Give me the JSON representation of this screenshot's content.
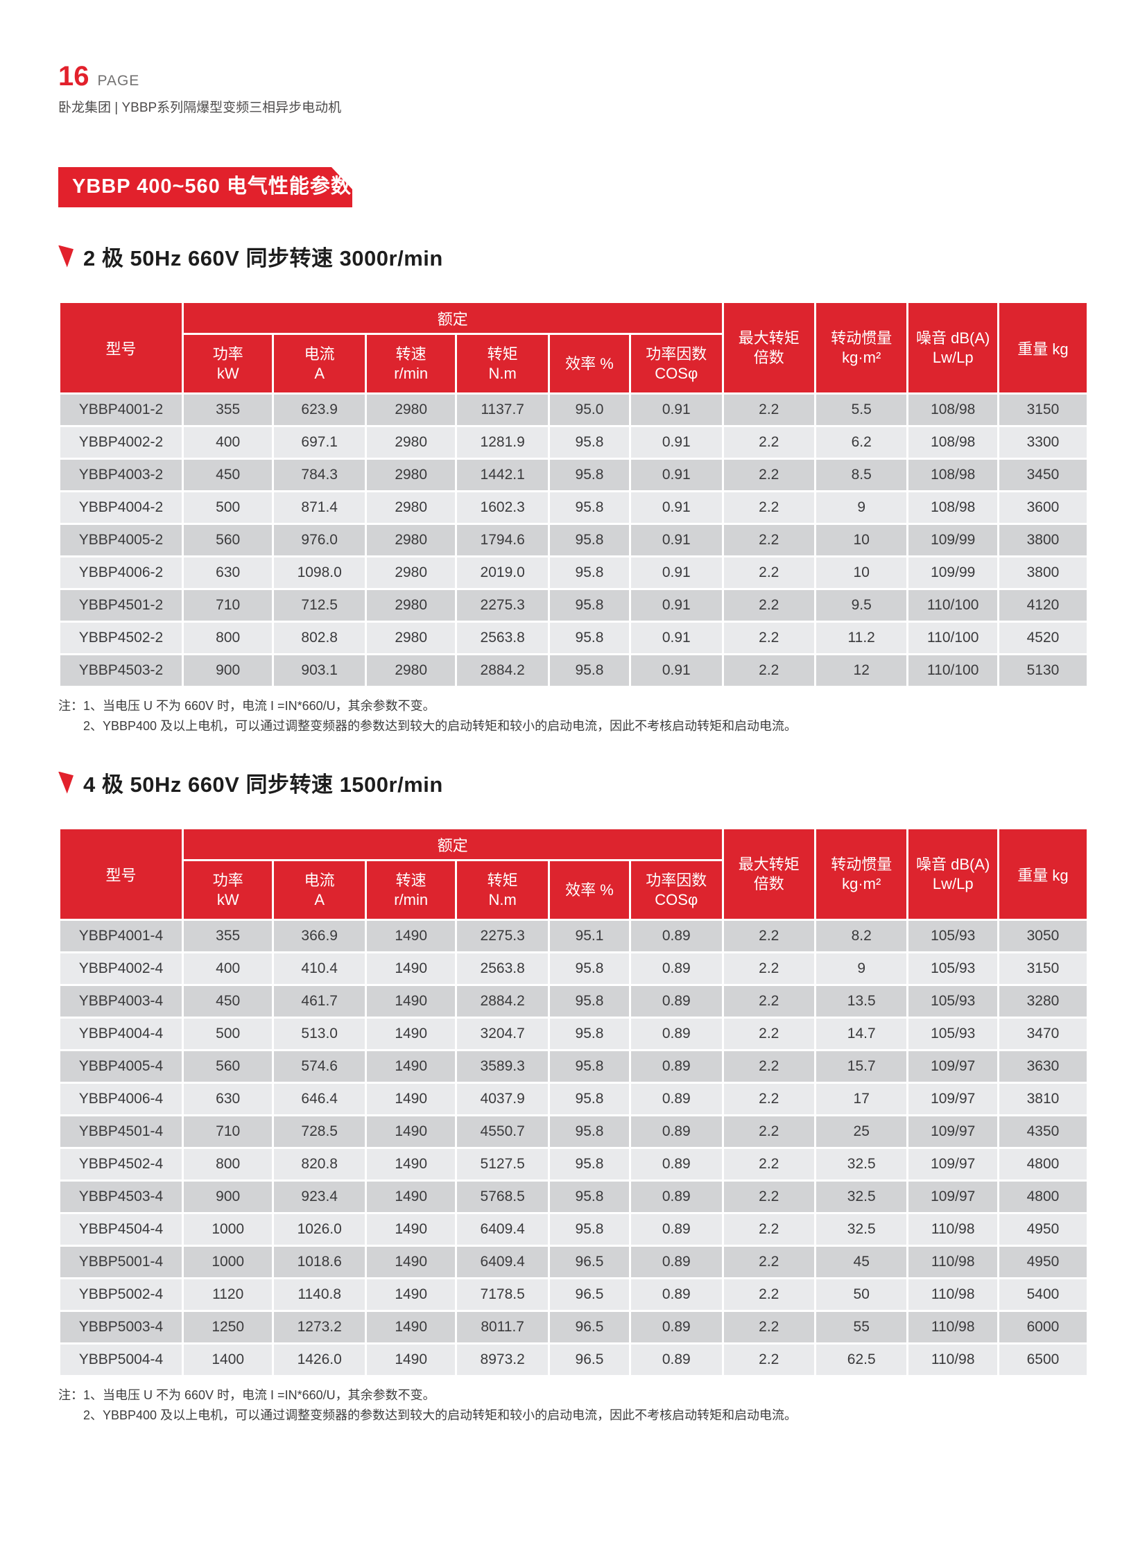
{
  "page": {
    "page_number": "16",
    "page_label": "PAGE",
    "subtitle": "卧龙集团 | YBBP系列隔爆型变频三相异步电动机",
    "banner_title": "YBBP 400~560 电气性能参数"
  },
  "colors": {
    "accent_red": "#e2212c",
    "row_dark": "#d2d3d5",
    "row_light": "#e9eaec"
  },
  "table_headers": {
    "model": "型号",
    "rated_group": "额定",
    "sub": [
      {
        "l1": "功率",
        "l2": "kW"
      },
      {
        "l1": "电流",
        "l2": "A"
      },
      {
        "l1": "转速",
        "l2": "r/min"
      },
      {
        "l1": "转矩",
        "l2": "N.m"
      },
      {
        "l1": "效率 %",
        "l2": ""
      },
      {
        "l1": "功率因数",
        "l2": "COSφ"
      }
    ],
    "max_torque": {
      "l1": "最大转矩",
      "l2": "倍数"
    },
    "inertia": {
      "l1": "转动惯量",
      "l2": "kg·m²"
    },
    "noise": {
      "l1": "噪音 dB(A)",
      "l2": "Lw/Lp"
    },
    "weight": "重量 kg"
  },
  "note_label": "注：",
  "sections": [
    {
      "heading": "2 极 50Hz 660V 同步转速 3000r/min",
      "rows": [
        [
          "YBBP4001-2",
          "355",
          "623.9",
          "2980",
          "1137.7",
          "95.0",
          "0.91",
          "2.2",
          "5.5",
          "108/98",
          "3150"
        ],
        [
          "YBBP4002-2",
          "400",
          "697.1",
          "2980",
          "1281.9",
          "95.8",
          "0.91",
          "2.2",
          "6.2",
          "108/98",
          "3300"
        ],
        [
          "YBBP4003-2",
          "450",
          "784.3",
          "2980",
          "1442.1",
          "95.8",
          "0.91",
          "2.2",
          "8.5",
          "108/98",
          "3450"
        ],
        [
          "YBBP4004-2",
          "500",
          "871.4",
          "2980",
          "1602.3",
          "95.8",
          "0.91",
          "2.2",
          "9",
          "108/98",
          "3600"
        ],
        [
          "YBBP4005-2",
          "560",
          "976.0",
          "2980",
          "1794.6",
          "95.8",
          "0.91",
          "2.2",
          "10",
          "109/99",
          "3800"
        ],
        [
          "YBBP4006-2",
          "630",
          "1098.0",
          "2980",
          "2019.0",
          "95.8",
          "0.91",
          "2.2",
          "10",
          "109/99",
          "3800"
        ],
        [
          "YBBP4501-2",
          "710",
          "712.5",
          "2980",
          "2275.3",
          "95.8",
          "0.91",
          "2.2",
          "9.5",
          "110/100",
          "4120"
        ],
        [
          "YBBP4502-2",
          "800",
          "802.8",
          "2980",
          "2563.8",
          "95.8",
          "0.91",
          "2.2",
          "11.2",
          "110/100",
          "4520"
        ],
        [
          "YBBP4503-2",
          "900",
          "903.1",
          "2980",
          "2884.2",
          "95.8",
          "0.91",
          "2.2",
          "12",
          "110/100",
          "5130"
        ]
      ],
      "notes": [
        "1、当电压 U 不为 660V 时，电流 I =IN*660/U，其余参数不变。",
        "2、YBBP400 及以上电机，可以通过调整变频器的参数达到较大的启动转矩和较小的启动电流，因此不考核启动转矩和启动电流。"
      ]
    },
    {
      "heading": "4 极 50Hz 660V 同步转速 1500r/min",
      "rows": [
        [
          "YBBP4001-4",
          "355",
          "366.9",
          "1490",
          "2275.3",
          "95.1",
          "0.89",
          "2.2",
          "8.2",
          "105/93",
          "3050"
        ],
        [
          "YBBP4002-4",
          "400",
          "410.4",
          "1490",
          "2563.8",
          "95.8",
          "0.89",
          "2.2",
          "9",
          "105/93",
          "3150"
        ],
        [
          "YBBP4003-4",
          "450",
          "461.7",
          "1490",
          "2884.2",
          "95.8",
          "0.89",
          "2.2",
          "13.5",
          "105/93",
          "3280"
        ],
        [
          "YBBP4004-4",
          "500",
          "513.0",
          "1490",
          "3204.7",
          "95.8",
          "0.89",
          "2.2",
          "14.7",
          "105/93",
          "3470"
        ],
        [
          "YBBP4005-4",
          "560",
          "574.6",
          "1490",
          "3589.3",
          "95.8",
          "0.89",
          "2.2",
          "15.7",
          "109/97",
          "3630"
        ],
        [
          "YBBP4006-4",
          "630",
          "646.4",
          "1490",
          "4037.9",
          "95.8",
          "0.89",
          "2.2",
          "17",
          "109/97",
          "3810"
        ],
        [
          "YBBP4501-4",
          "710",
          "728.5",
          "1490",
          "4550.7",
          "95.8",
          "0.89",
          "2.2",
          "25",
          "109/97",
          "4350"
        ],
        [
          "YBBP4502-4",
          "800",
          "820.8",
          "1490",
          "5127.5",
          "95.8",
          "0.89",
          "2.2",
          "32.5",
          "109/97",
          "4800"
        ],
        [
          "YBBP4503-4",
          "900",
          "923.4",
          "1490",
          "5768.5",
          "95.8",
          "0.89",
          "2.2",
          "32.5",
          "109/97",
          "4800"
        ],
        [
          "YBBP4504-4",
          "1000",
          "1026.0",
          "1490",
          "6409.4",
          "95.8",
          "0.89",
          "2.2",
          "32.5",
          "110/98",
          "4950"
        ],
        [
          "YBBP5001-4",
          "1000",
          "1018.6",
          "1490",
          "6409.4",
          "96.5",
          "0.89",
          "2.2",
          "45",
          "110/98",
          "4950"
        ],
        [
          "YBBP5002-4",
          "1120",
          "1140.8",
          "1490",
          "7178.5",
          "96.5",
          "0.89",
          "2.2",
          "50",
          "110/98",
          "5400"
        ],
        [
          "YBBP5003-4",
          "1250",
          "1273.2",
          "1490",
          "8011.7",
          "96.5",
          "0.89",
          "2.2",
          "55",
          "110/98",
          "6000"
        ],
        [
          "YBBP5004-4",
          "1400",
          "1426.0",
          "1490",
          "8973.2",
          "96.5",
          "0.89",
          "2.2",
          "62.5",
          "110/98",
          "6500"
        ]
      ],
      "notes": [
        "1、当电压 U 不为 660V 时，电流 I =IN*660/U，其余参数不变。",
        "2、YBBP400 及以上电机，可以通过调整变频器的参数达到较大的启动转矩和较小的启动电流，因此不考核启动转矩和启动电流。"
      ]
    }
  ]
}
